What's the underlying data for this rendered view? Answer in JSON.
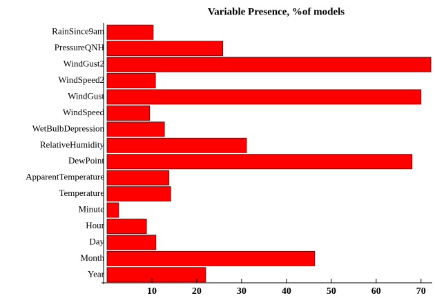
{
  "chart_data": {
    "type": "barh",
    "title": "Variable Presence, %of models",
    "categories": [
      "RainSince9am",
      "PressureQNH",
      "WindGust2",
      "WindSpeed2",
      "WindGust",
      "WindSpeed",
      "WetBulbDepression",
      "RelativeHumidity",
      "DewPoint",
      "ApparentTemperature",
      "Temperature",
      "Minute",
      "Hour",
      "Day",
      "Month",
      "Year"
    ],
    "values": [
      10.3,
      25.8,
      72.2,
      10.8,
      70,
      9.5,
      12.8,
      31.1,
      68,
      13.8,
      14.2,
      2.6,
      8.8,
      10.9,
      46.3,
      22
    ],
    "color": "#ff0000",
    "xlim": [
      0,
      72.5
    ],
    "xticks": [
      10,
      20,
      30,
      40,
      50,
      60,
      70
    ]
  }
}
